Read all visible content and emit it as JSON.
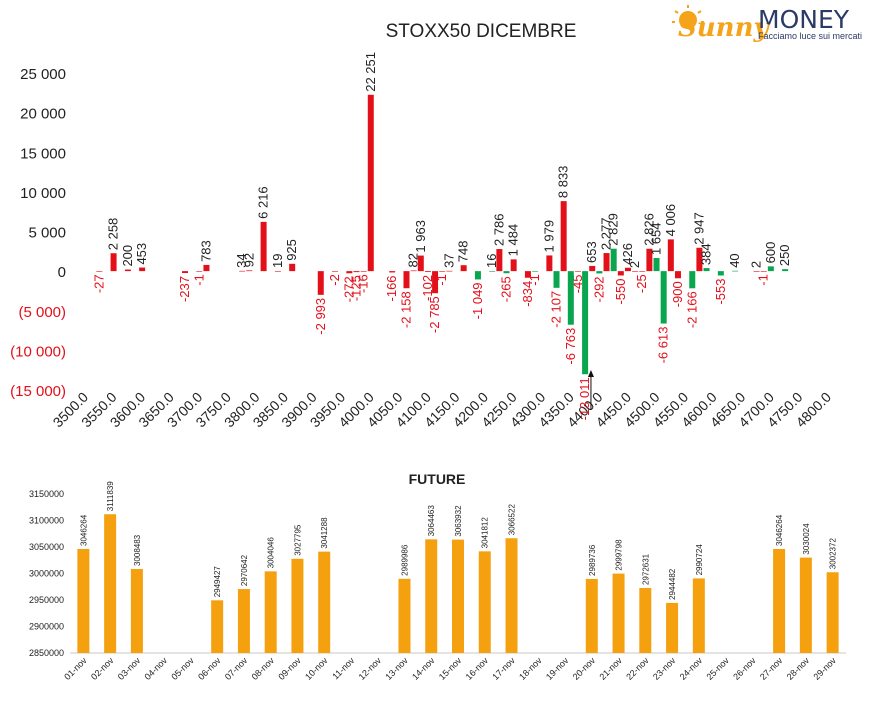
{
  "logo": {
    "brand_left": "Sunny",
    "brand_right": "MONEY",
    "tagline": "Facciamo luce sui mercati",
    "colors": {
      "sun": "#f5a31a",
      "text": "#2b3a67"
    }
  },
  "chart_data": [
    {
      "type": "bar",
      "title": "STOXX50 DICEMBRE",
      "ylim": [
        -15000,
        25000
      ],
      "y_ticks": [
        {
          "value": 25000,
          "label": "25 000"
        },
        {
          "value": 20000,
          "label": "20 000"
        },
        {
          "value": 15000,
          "label": "15 000"
        },
        {
          "value": 10000,
          "label": "10 000"
        },
        {
          "value": 5000,
          "label": "5 000"
        },
        {
          "value": 0,
          "label": "0"
        },
        {
          "value": -5000,
          "label": "(5 000)"
        },
        {
          "value": -10000,
          "label": "(10 000)"
        },
        {
          "value": -15000,
          "label": "(15 000)"
        }
      ],
      "x_ticks": [
        "3500.0",
        "3550.0",
        "3600.0",
        "3650.0",
        "3700.0",
        "3750.0",
        "3800.0",
        "3850.0",
        "3900.0",
        "3950.0",
        "4000.0",
        "4050.0",
        "4100.0",
        "4150.0",
        "4200.0",
        "4250.0",
        "4300.0",
        "4350.0",
        "4400.0",
        "4450.0",
        "4500.0",
        "4550.0",
        "4600.0",
        "4650.0",
        "4700.0",
        "4750.0",
        "4800.0"
      ],
      "xlim": [
        3500,
        4800
      ],
      "colors": {
        "red": "#e3101a",
        "green": "#0aa54f",
        "negative_label": "#e3101a",
        "positive_label": "#222222"
      },
      "series": [
        {
          "name": "",
          "color": "red",
          "points": [
            {
              "x": 3525,
              "y": -27,
              "label": "-27"
            },
            {
              "x": 3550,
              "y": 2258,
              "label": "2 258"
            },
            {
              "x": 3575,
              "y": 200,
              "label": "200"
            },
            {
              "x": 3600,
              "y": 453,
              "label": "453"
            },
            {
              "x": 3675,
              "y": -237,
              "label": "-237"
            },
            {
              "x": 3700,
              "y": -1,
              "label": "-1"
            },
            {
              "x": 3712.5,
              "y": 783,
              "label": "783"
            },
            {
              "x": 3775,
              "y": 34,
              "label": "34"
            },
            {
              "x": 3787.5,
              "y": 92,
              "label": "92"
            },
            {
              "x": 3812.5,
              "y": 6216,
              "label": "6 216"
            },
            {
              "x": 3837.5,
              "y": 19,
              "label": "19"
            },
            {
              "x": 3862.5,
              "y": 925,
              "label": "925"
            },
            {
              "x": 3912.5,
              "y": -2993,
              "label": "-2 993"
            },
            {
              "x": 3937.5,
              "y": -2,
              "label": "-2"
            },
            {
              "x": 3962.5,
              "y": -272,
              "label": "-272"
            },
            {
              "x": 3975,
              "y": -125,
              "label": "-125"
            },
            {
              "x": 3987.5,
              "y": -16,
              "label": "-16"
            },
            {
              "x": 4000,
              "y": 22251,
              "label": "22 251"
            },
            {
              "x": 4037.5,
              "y": -166,
              "label": "-166"
            },
            {
              "x": 4062.5,
              "y": -2158,
              "label": "-2 158"
            },
            {
              "x": 4075,
              "y": 82,
              "label": "82"
            },
            {
              "x": 4087.5,
              "y": 1963,
              "label": "1 963"
            },
            {
              "x": 4100,
              "y": -102,
              "label": "-102"
            },
            {
              "x": 4112.5,
              "y": -2785,
              "label": "-2 785"
            },
            {
              "x": 4125,
              "y": -1,
              "label": "-1"
            },
            {
              "x": 4137.5,
              "y": 37,
              "label": "37"
            },
            {
              "x": 4162.5,
              "y": 748,
              "label": "748"
            },
            {
              "x": 4225,
              "y": 2786,
              "label": "2 786"
            },
            {
              "x": 4250,
              "y": 1484,
              "label": "1 484"
            },
            {
              "x": 4275,
              "y": -834,
              "label": "-834"
            },
            {
              "x": 4312.5,
              "y": 1979,
              "label": "1 979"
            },
            {
              "x": 4337.5,
              "y": 8833,
              "label": "8 833"
            },
            {
              "x": 4362.5,
              "y": -45,
              "label": "-45"
            },
            {
              "x": 4387.5,
              "y": 653,
              "label": "653"
            },
            {
              "x": 4412.5,
              "y": 2277,
              "label": "2 277"
            },
            {
              "x": 4437.5,
              "y": -550,
              "label": "-550"
            },
            {
              "x": 4450,
              "y": 426,
              "label": "426"
            },
            {
              "x": 4462.5,
              "y": 2,
              "label": "2"
            },
            {
              "x": 4475,
              "y": -25,
              "label": "-25"
            },
            {
              "x": 4487.5,
              "y": 2826,
              "label": "2 826"
            },
            {
              "x": 4525,
              "y": 4006,
              "label": "4 006"
            },
            {
              "x": 4537.5,
              "y": -900,
              "label": "-900"
            },
            {
              "x": 4575,
              "y": 2947,
              "label": "2 947"
            },
            {
              "x": 4675,
              "y": 2,
              "label": "2"
            },
            {
              "x": 4687.5,
              "y": -1,
              "label": "-1"
            }
          ]
        },
        {
          "name": "",
          "color": "green",
          "points": [
            {
              "x": 4187.5,
              "y": -1049,
              "label": "-1 049"
            },
            {
              "x": 4212.5,
              "y": 16,
              "label": "16"
            },
            {
              "x": 4237.5,
              "y": -265,
              "label": "-265"
            },
            {
              "x": 4287.5,
              "y": -1,
              "label": "-1"
            },
            {
              "x": 4325,
              "y": -2107,
              "label": "-2 107"
            },
            {
              "x": 4350,
              "y": -6763,
              "label": "-6 763"
            },
            {
              "x": 4375,
              "y": -13011,
              "label": "-13 011"
            },
            {
              "x": 4400,
              "y": -292,
              "label": "-292"
            },
            {
              "x": 4425,
              "y": 2829,
              "label": "2 829"
            },
            {
              "x": 4500,
              "y": 1654,
              "label": "1 654"
            },
            {
              "x": 4512.5,
              "y": -6613,
              "label": "-6 613"
            },
            {
              "x": 4562.5,
              "y": -2166,
              "label": "-2 166"
            },
            {
              "x": 4587.5,
              "y": 384,
              "label": "384"
            },
            {
              "x": 4612.5,
              "y": -553,
              "label": "-553"
            },
            {
              "x": 4637.5,
              "y": 40,
              "label": "40"
            },
            {
              "x": 4700,
              "y": 600,
              "label": "600"
            },
            {
              "x": 4725,
              "y": 250,
              "label": "250"
            }
          ]
        }
      ]
    },
    {
      "type": "bar",
      "title": "FUTURE",
      "ylim": [
        2850000,
        3150000
      ],
      "y_ticks": [
        3150000,
        3100000,
        3050000,
        3000000,
        2950000,
        2900000,
        2850000
      ],
      "color": "#f5a00f",
      "categories": [
        "01-nov",
        "02-nov",
        "03-nov",
        "04-nov",
        "05-nov",
        "06-nov",
        "07-nov",
        "08-nov",
        "09-nov",
        "10-nov",
        "11-nov",
        "12-nov",
        "13-nov",
        "14-nov",
        "15-nov",
        "16-nov",
        "17-nov",
        "18-nov",
        "19-nov",
        "20-nov",
        "21-nov",
        "22-nov",
        "23-nov",
        "24-nov",
        "25-nov",
        "26-nov",
        "27-nov",
        "28-nov",
        "29-nov"
      ],
      "values": [
        3046264,
        3111839,
        3008483,
        null,
        null,
        2949427,
        2970642,
        3004046,
        3027795,
        3041288,
        null,
        null,
        2989986,
        3064463,
        3063932,
        3041812,
        3066522,
        null,
        null,
        2989736,
        2999798,
        2972631,
        2944482,
        2990724,
        null,
        null,
        3046264,
        3030024,
        3002372
      ]
    }
  ]
}
